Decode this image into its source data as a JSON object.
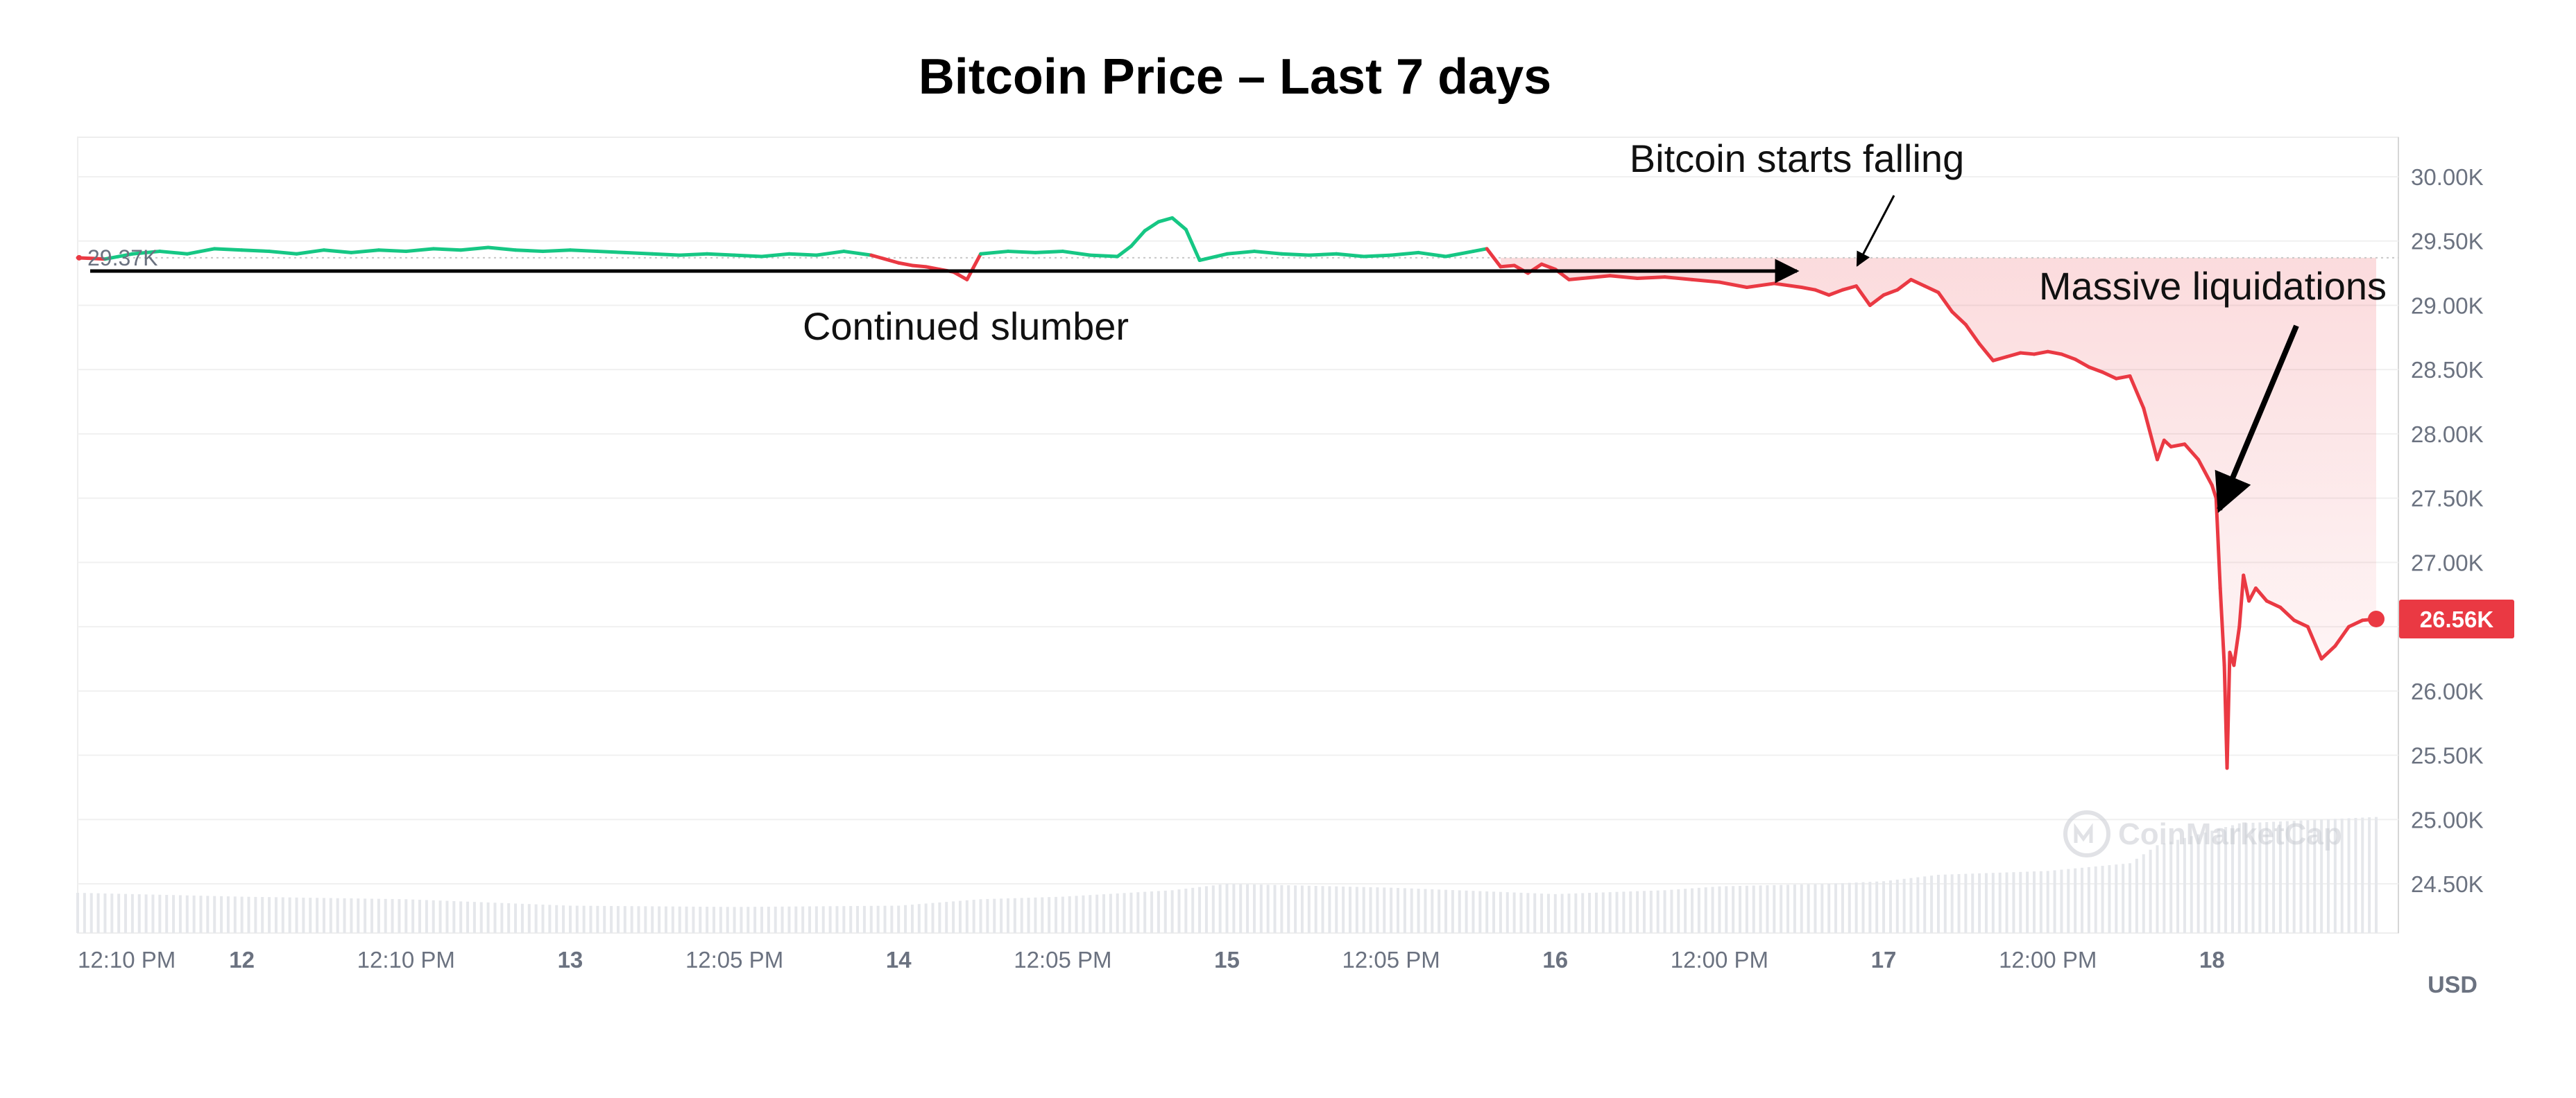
{
  "chart_data": {
    "type": "area",
    "title": "Bitcoin Price – Last 7 days",
    "ylabel": "",
    "xlabel": "",
    "y_unit_label": "USD",
    "ylim": [
      24300,
      30200
    ],
    "y_ticks": [
      24500,
      25000,
      25500,
      26000,
      26500,
      27000,
      27500,
      28000,
      28500,
      29000,
      29500,
      30000
    ],
    "y_tick_labels": [
      "24.50K",
      "25.00K",
      "25.50K",
      "26.00K",
      "26.50K",
      "27.00K",
      "27.50K",
      "28.00K",
      "28.50K",
      "29.00K",
      "29.50K",
      "30.00K"
    ],
    "x_range": [
      0,
      168
    ],
    "x_ticks": [
      {
        "t": 0,
        "label": "12:10 PM",
        "bold": false
      },
      {
        "t": 12,
        "label": "12",
        "bold": true
      },
      {
        "t": 24,
        "label": "12:10 PM",
        "bold": false
      },
      {
        "t": 36,
        "label": "13",
        "bold": true
      },
      {
        "t": 48,
        "label": "12:05 PM",
        "bold": false
      },
      {
        "t": 60,
        "label": "14",
        "bold": true
      },
      {
        "t": 72,
        "label": "12:05 PM",
        "bold": false
      },
      {
        "t": 84,
        "label": "15",
        "bold": true
      },
      {
        "t": 96,
        "label": "12:05 PM",
        "bold": false
      },
      {
        "t": 108,
        "label": "16",
        "bold": true
      },
      {
        "t": 120,
        "label": "12:00 PM",
        "bold": false
      },
      {
        "t": 132,
        "label": "17",
        "bold": true
      },
      {
        "t": 144,
        "label": "12:00 PM",
        "bold": false
      },
      {
        "t": 156,
        "label": "18",
        "bold": true
      }
    ],
    "reference_price": 29370,
    "reference_label": "29.37K",
    "current_price": 26560,
    "current_label": "26.56K",
    "colors": {
      "up": "#16c784",
      "down": "#ea3943",
      "grid": "#f0f0f0",
      "volume": "#e5e7eb",
      "axis_text": "#6b7280"
    },
    "series": [
      {
        "points": [
          [
            0,
            29370
          ],
          [
            2,
            29360
          ],
          [
            4,
            29400
          ],
          [
            6,
            29420
          ],
          [
            8,
            29400
          ],
          [
            10,
            29440
          ],
          [
            12,
            29430
          ],
          [
            14,
            29420
          ],
          [
            16,
            29400
          ],
          [
            18,
            29430
          ],
          [
            20,
            29410
          ],
          [
            22,
            29430
          ],
          [
            24,
            29420
          ],
          [
            26,
            29440
          ],
          [
            28,
            29430
          ],
          [
            30,
            29450
          ],
          [
            32,
            29430
          ],
          [
            34,
            29420
          ],
          [
            36,
            29430
          ],
          [
            38,
            29420
          ],
          [
            40,
            29410
          ],
          [
            42,
            29400
          ],
          [
            44,
            29390
          ],
          [
            46,
            29400
          ],
          [
            48,
            29390
          ],
          [
            50,
            29380
          ],
          [
            52,
            29400
          ],
          [
            54,
            29390
          ],
          [
            56,
            29420
          ],
          [
            58,
            29390
          ],
          [
            60,
            29330
          ],
          [
            61,
            29310
          ],
          [
            62,
            29300
          ],
          [
            63,
            29280
          ],
          [
            64,
            29260
          ],
          [
            65,
            29200
          ],
          [
            66,
            29400
          ],
          [
            68,
            29420
          ],
          [
            70,
            29410
          ],
          [
            72,
            29420
          ],
          [
            74,
            29390
          ],
          [
            76,
            29380
          ],
          [
            77,
            29460
          ],
          [
            78,
            29580
          ],
          [
            79,
            29650
          ],
          [
            80,
            29680
          ],
          [
            81,
            29590
          ],
          [
            82,
            29350
          ],
          [
            84,
            29400
          ],
          [
            86,
            29420
          ],
          [
            88,
            29400
          ],
          [
            90,
            29390
          ],
          [
            92,
            29400
          ],
          [
            94,
            29380
          ],
          [
            96,
            29390
          ],
          [
            98,
            29410
          ],
          [
            100,
            29380
          ],
          [
            102,
            29420
          ],
          [
            103,
            29440
          ],
          [
            104,
            29300
          ],
          [
            105,
            29310
          ],
          [
            106,
            29250
          ],
          [
            107,
            29320
          ],
          [
            108,
            29280
          ],
          [
            109,
            29200
          ],
          [
            110,
            29210
          ],
          [
            112,
            29230
          ],
          [
            114,
            29210
          ],
          [
            116,
            29220
          ],
          [
            118,
            29200
          ],
          [
            120,
            29180
          ],
          [
            122,
            29140
          ],
          [
            124,
            29170
          ],
          [
            126,
            29140
          ],
          [
            127,
            29120
          ],
          [
            128,
            29080
          ],
          [
            129,
            29120
          ],
          [
            130,
            29150
          ],
          [
            131,
            29000
          ],
          [
            132,
            29080
          ],
          [
            133,
            29120
          ],
          [
            134,
            29200
          ],
          [
            135,
            29150
          ],
          [
            136,
            29100
          ],
          [
            137,
            28950
          ],
          [
            138,
            28850
          ],
          [
            139,
            28700
          ],
          [
            140,
            28570
          ],
          [
            141,
            28600
          ],
          [
            142,
            28630
          ],
          [
            143,
            28620
          ],
          [
            144,
            28640
          ],
          [
            145,
            28620
          ],
          [
            146,
            28580
          ],
          [
            147,
            28520
          ],
          [
            148,
            28480
          ],
          [
            149,
            28430
          ],
          [
            150,
            28450
          ],
          [
            151,
            28200
          ],
          [
            152,
            27800
          ],
          [
            152.5,
            27950
          ],
          [
            153,
            27900
          ],
          [
            154,
            27920
          ],
          [
            155,
            27800
          ],
          [
            156,
            27600
          ],
          [
            156.3,
            27500
          ],
          [
            156.6,
            26800
          ],
          [
            156.9,
            26200
          ],
          [
            157.1,
            25400
          ],
          [
            157.3,
            26300
          ],
          [
            157.6,
            26200
          ],
          [
            158,
            26500
          ],
          [
            158.3,
            26900
          ],
          [
            158.7,
            26700
          ],
          [
            159.2,
            26800
          ],
          [
            160,
            26700
          ],
          [
            161,
            26650
          ],
          [
            162,
            26550
          ],
          [
            163,
            26500
          ],
          [
            164,
            26250
          ],
          [
            165,
            26350
          ],
          [
            166,
            26500
          ],
          [
            167,
            26550
          ],
          [
            168,
            26560
          ]
        ]
      }
    ],
    "volume_profile": [
      [
        0,
        24.43
      ],
      [
        12,
        24.4
      ],
      [
        24,
        24.38
      ],
      [
        36,
        24.33
      ],
      [
        48,
        24.32
      ],
      [
        60,
        24.33
      ],
      [
        66,
        24.38
      ],
      [
        72,
        24.4
      ],
      [
        80,
        24.45
      ],
      [
        84,
        24.5
      ],
      [
        96,
        24.47
      ],
      [
        108,
        24.42
      ],
      [
        116,
        24.45
      ],
      [
        120,
        24.48
      ],
      [
        128,
        24.5
      ],
      [
        132,
        24.52
      ],
      [
        136,
        24.57
      ],
      [
        144,
        24.6
      ],
      [
        150,
        24.66
      ],
      [
        152,
        24.8
      ],
      [
        158,
        24.97
      ],
      [
        168,
        25.02
      ]
    ],
    "annotations": [
      {
        "id": "slumber",
        "text": "Continued slumber"
      },
      {
        "id": "falling",
        "text": "Bitcoin starts falling"
      },
      {
        "id": "liquidations",
        "text": "Massive liquidations"
      }
    ],
    "watermark": "CoinMarketCap"
  }
}
